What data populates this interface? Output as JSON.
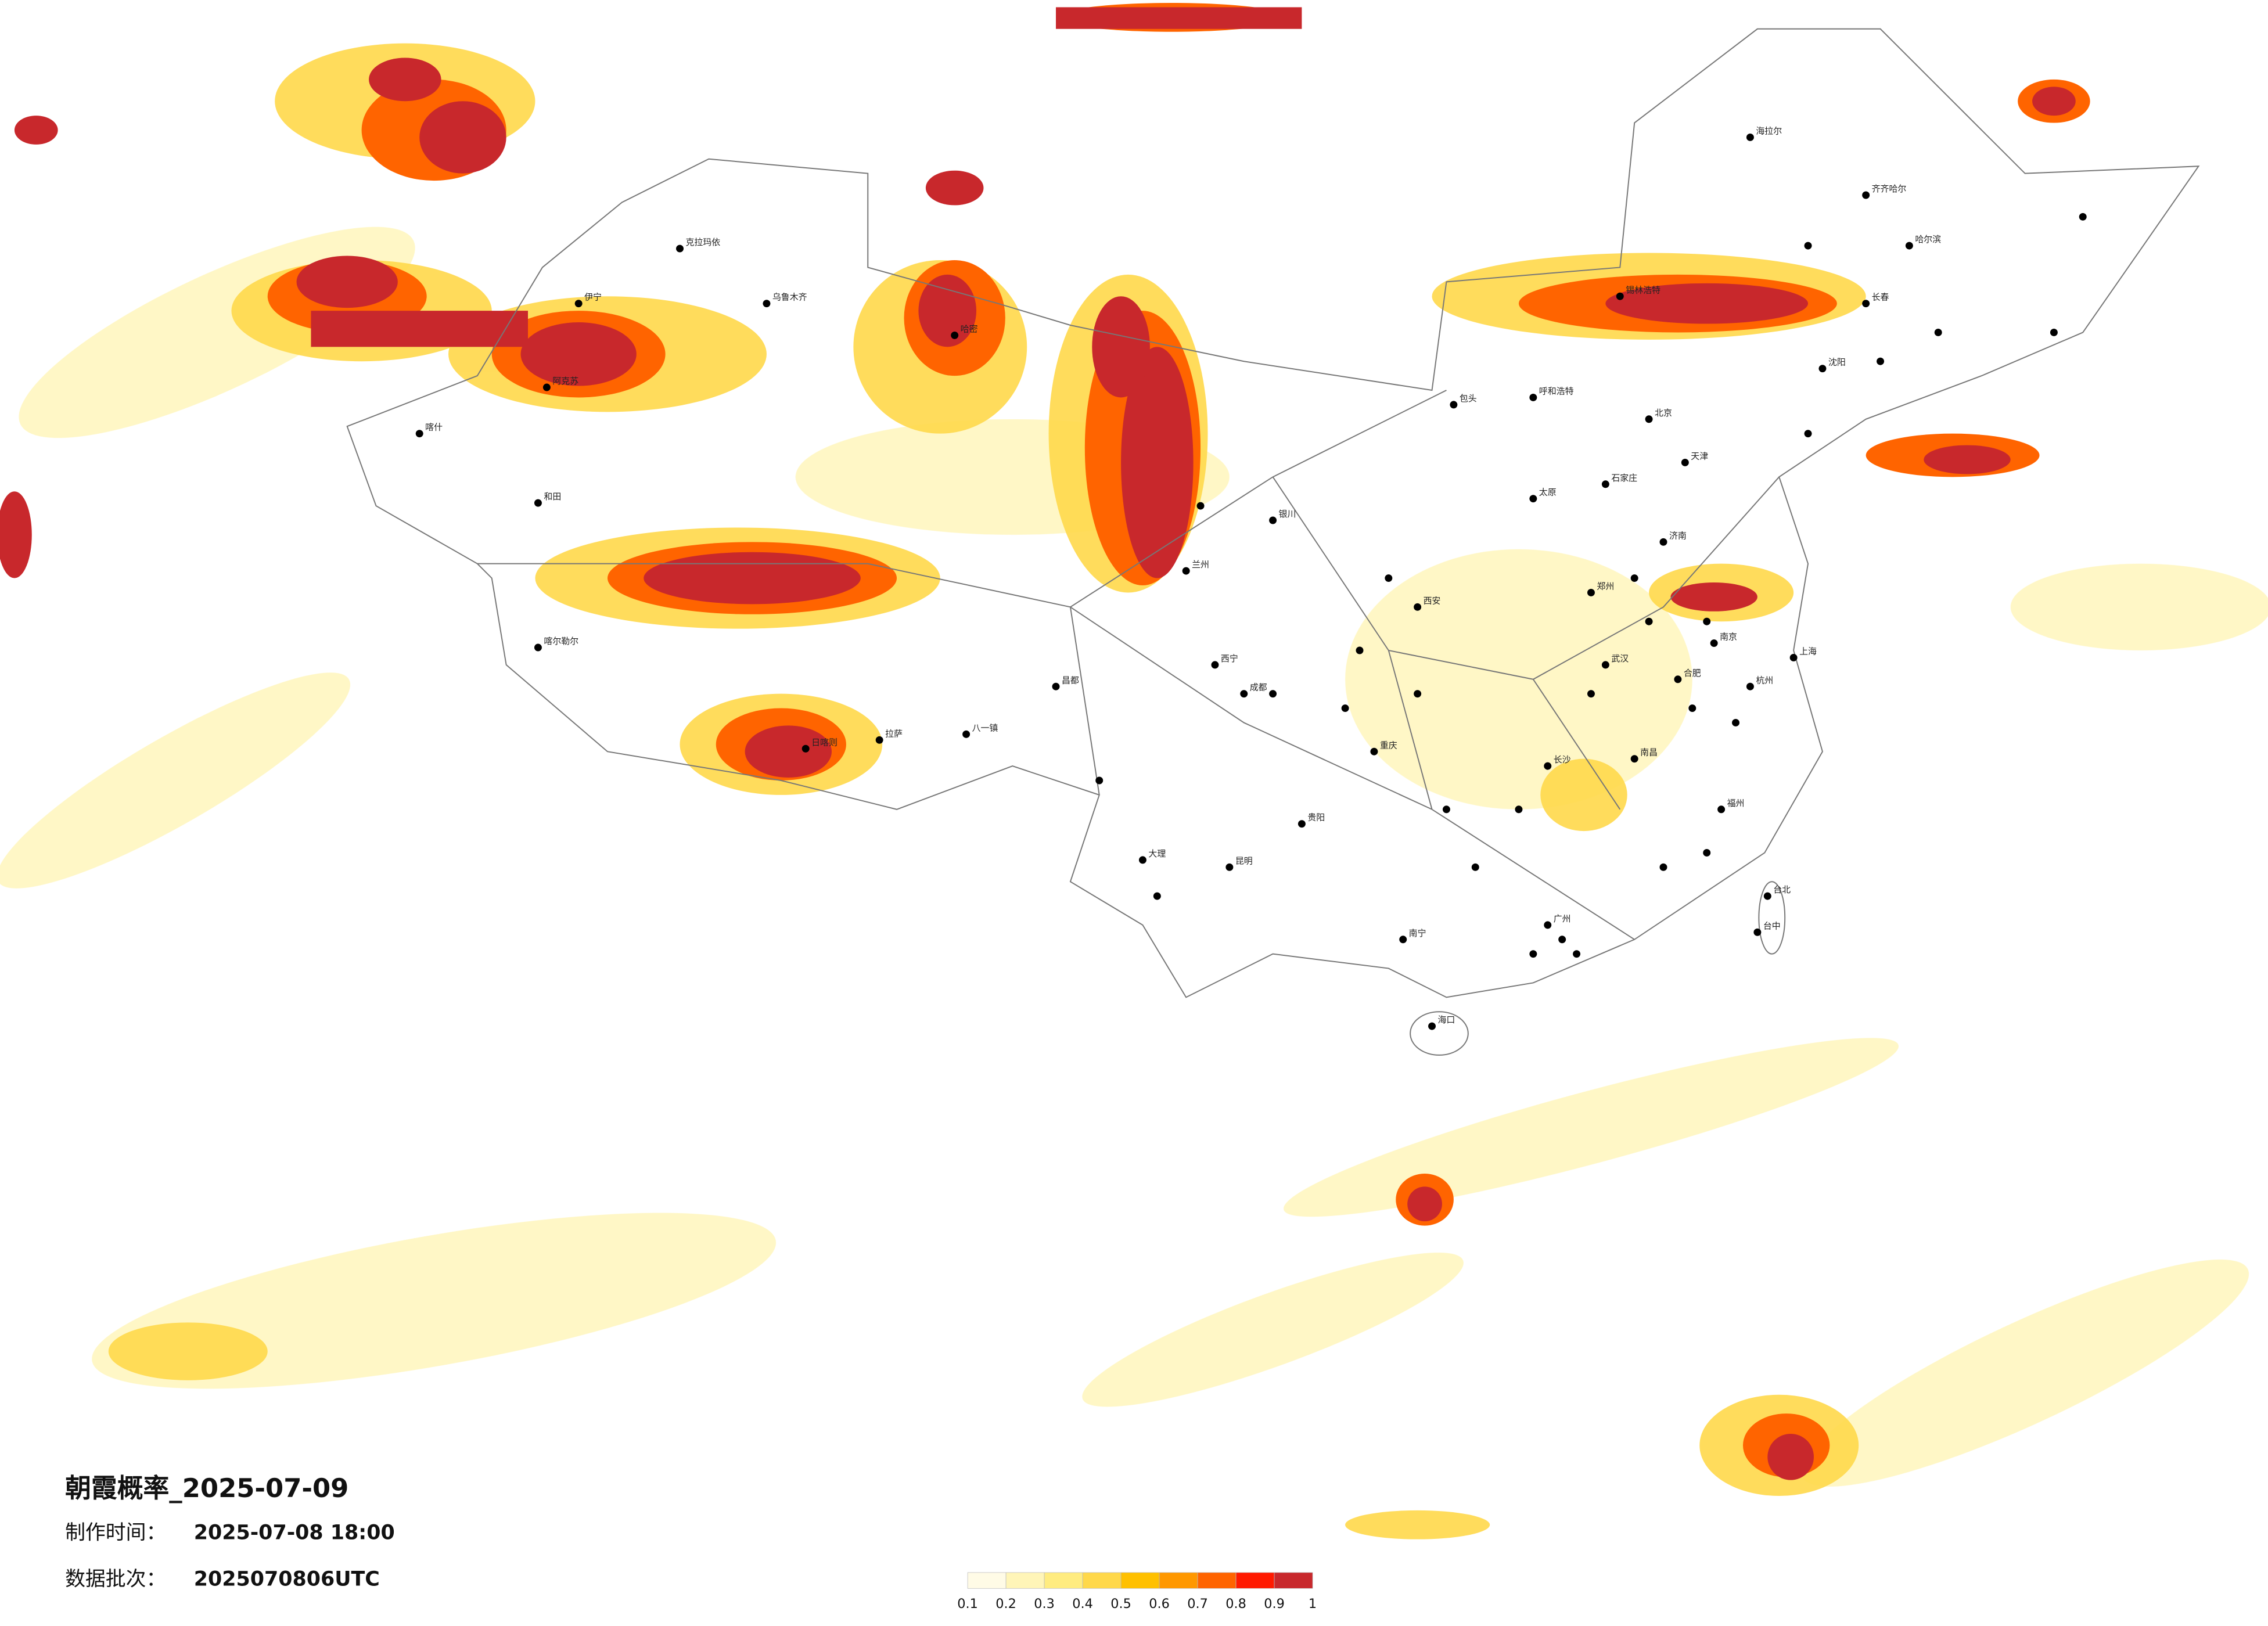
{
  "map": {
    "title": "朝霞概率_2025-07-09",
    "made_label": "制作时间：",
    "made_time": "2025-07-08 18:00",
    "batch_label": "数据批次：",
    "batch": "2025070806UTC",
    "legend": {
      "colors": [
        "#fffbe6",
        "#fff5b8",
        "#ffec80",
        "#ffd84a",
        "#ffc000",
        "#ff9800",
        "#ff6400",
        "#ff1a00",
        "#c8282c"
      ],
      "labels": [
        0.1,
        0.2,
        0.3,
        0.4,
        0.5,
        0.6,
        0.7,
        0.8,
        0.9,
        1
      ]
    },
    "cities": [
      "克拉玛依",
      "乌鲁木齐",
      "伊宁",
      "阿克苏",
      "喀什",
      "和田",
      "哈密",
      "喀尔勒尔",
      "拉萨",
      "日喀则",
      "八一镇",
      "昌都",
      "西宁",
      "兰州",
      "银川",
      "呼和浩特",
      "包头",
      "北京",
      "天津",
      "石家庄",
      "太原",
      "济南",
      "郑州",
      "西安",
      "成都",
      "重庆",
      "贵阳",
      "昆明",
      "南宁",
      "广州",
      "长沙",
      "武汉",
      "南昌",
      "福州",
      "杭州",
      "南京",
      "上海",
      "合肥",
      "沈阳",
      "长春",
      "哈尔滨",
      "齐齐哈尔",
      "海拉尔",
      "海口",
      "台北",
      "台中",
      "大理",
      "锡林浩特"
    ]
  }
}
